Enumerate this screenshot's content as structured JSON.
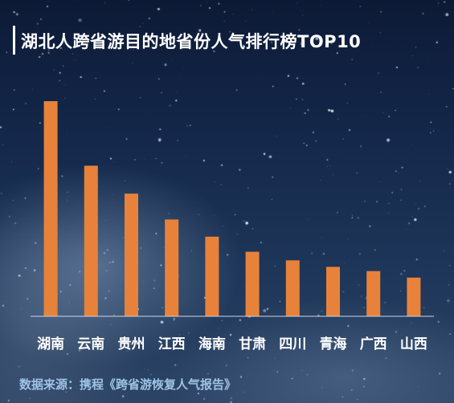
{
  "header": {
    "title": "湖北人跨省游目的地省份人气排行榜TOP10"
  },
  "footer": {
    "source": "数据来源：携程《跨省游恢复人气报告》"
  },
  "colors": {
    "bar": "#e8823a",
    "axis": "#c9d6e6",
    "label": "#ffffff"
  },
  "chart_data": {
    "type": "bar",
    "title": "湖北人跨省游目的地省份人气排行榜TOP10",
    "categories": [
      "湖南",
      "云南",
      "贵州",
      "江西",
      "海南",
      "甘肃",
      "四川",
      "青海",
      "广西",
      "山西"
    ],
    "values": [
      100,
      70,
      57,
      45,
      37,
      30,
      26,
      23,
      21,
      18
    ],
    "ylim": [
      0,
      100
    ],
    "grid": false,
    "legend": "none"
  }
}
